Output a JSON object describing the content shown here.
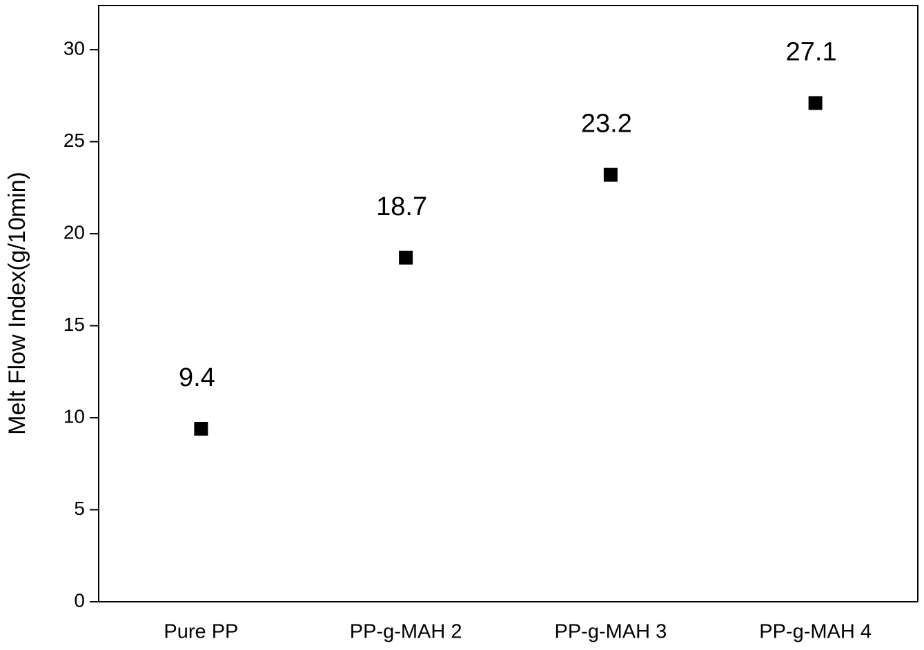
{
  "chart_data": {
    "type": "scatter",
    "y_label": "Melt Flow Index(g/10min)",
    "categories": [
      "Pure PP",
      "PP-g-MAH 2",
      "PP-g-MAH 3",
      "PP-g-MAH 4"
    ],
    "values": [
      9.4,
      18.7,
      23.2,
      27.1
    ],
    "color": "#000000",
    "ylim": [
      0,
      32.4
    ],
    "yticks": [
      0,
      5,
      10,
      15,
      20,
      25,
      30
    ]
  }
}
